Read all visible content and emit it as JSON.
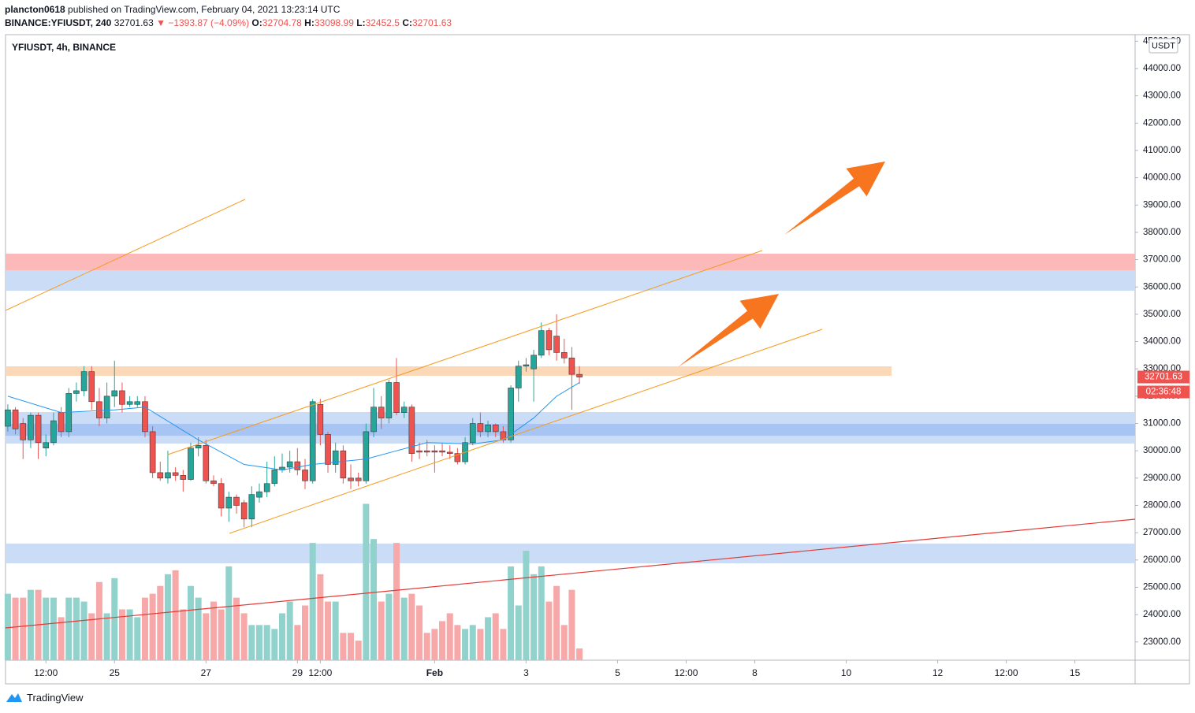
{
  "chart_data": {
    "type": "candlestick",
    "publisher": "plancton0618",
    "published": "published on TradingView.com, February 04, 2021 13:23:14 UTC",
    "symbol": "BINANCE:YFIUSDT, 240",
    "last": 32701.63,
    "change": "▼ −1393.87 (−4.09%)",
    "o_label": "O:",
    "o": 32704.78,
    "h_label": "H:",
    "h": 33098.99,
    "l_label": "L:",
    "l": 32452.5,
    "c_label": "C:",
    "c": 32701.63,
    "legend": "YFIUSDT, 4h, BINANCE",
    "currency": "USDT",
    "price_label": 32701.63,
    "countdown": "02:36:48",
    "brand": "TradingView",
    "up_color": "#26a69a",
    "down_color": "#ef5350",
    "volume_up_color": "#92d2cc",
    "volume_down_color": "#f6a9a8",
    "open": [
      30900,
      31500,
      31000,
      30400,
      31300,
      30100,
      30300,
      31400,
      30700,
      32100,
      32200,
      32900,
      31800,
      31200,
      32000,
      32200,
      31700,
      31700,
      31800,
      30700,
      29200,
      29000,
      29200,
      29100,
      28950,
      30100,
      30200,
      28900,
      28800,
      27900,
      28300,
      28100,
      27500,
      28300,
      28500,
      28800,
      29300,
      29400,
      29600,
      29300,
      28900,
      31700,
      30600,
      29500,
      30000,
      29000,
      29000,
      28900,
      30700,
      31600,
      31200,
      32500,
      31400,
      31600,
      30000,
      30000,
      30000,
      30000,
      29950,
      29900,
      29600,
      30300,
      31000,
      30700,
      30950,
      30700,
      30400,
      32300,
      33100,
      33000,
      33500,
      34400,
      34200,
      33600,
      33400,
      32800
    ],
    "high": [
      31700,
      31600,
      31200,
      31400,
      31400,
      30600,
      31400,
      31600,
      32300,
      32500,
      33100,
      33100,
      32300,
      32500,
      33300,
      32500,
      32000,
      32000,
      32000,
      30900,
      29600,
      30000,
      29400,
      29300,
      30300,
      30500,
      30400,
      29100,
      29000,
      28500,
      28400,
      28200,
      28700,
      28800,
      29600,
      29800,
      29900,
      30000,
      30100,
      29700,
      31900,
      31900,
      30700,
      30300,
      30200,
      29500,
      29200,
      31000,
      32300,
      32000,
      32600,
      33400,
      31800,
      31700,
      30300,
      30400,
      30200,
      30300,
      30200,
      30100,
      30500,
      31200,
      31400,
      31100,
      31000,
      30900,
      32400,
      33300,
      33400,
      33700,
      34700,
      34500,
      35000,
      34100,
      33800,
      33100
    ],
    "low": [
      30700,
      30600,
      29700,
      30100,
      29700,
      29800,
      30200,
      30500,
      30500,
      31800,
      32000,
      31500,
      30900,
      31000,
      31600,
      31400,
      31600,
      31600,
      30500,
      29000,
      28900,
      28800,
      28900,
      28500,
      28900,
      29800,
      28800,
      28700,
      27600,
      27400,
      27700,
      27200,
      27200,
      28100,
      28300,
      28700,
      29200,
      29200,
      29100,
      28600,
      28800,
      30200,
      29200,
      29200,
      28800,
      28600,
      28700,
      28800,
      30500,
      30800,
      31000,
      31300,
      31200,
      29600,
      29700,
      29800,
      29200,
      29800,
      29700,
      29500,
      29500,
      30200,
      30500,
      30500,
      30500,
      30300,
      30300,
      31800,
      32900,
      31800,
      33400,
      33500,
      33300,
      33200,
      31500,
      32450
    ],
    "close": [
      31500,
      30800,
      30400,
      31300,
      30300,
      30300,
      31100,
      30700,
      32100,
      32200,
      32900,
      31800,
      31200,
      32000,
      32200,
      31700,
      31800,
      31800,
      30700,
      29200,
      29000,
      29200,
      29100,
      28950,
      30100,
      30200,
      28900,
      28800,
      27900,
      28300,
      28000,
      27500,
      28400,
      28500,
      28800,
      29300,
      29400,
      29600,
      29300,
      28900,
      31800,
      30600,
      29500,
      30000,
      29000,
      28900,
      28900,
      30700,
      31600,
      31200,
      32500,
      31400,
      31600,
      29900,
      29950,
      29950,
      29950,
      29950,
      29900,
      29600,
      30300,
      31000,
      30700,
      30950,
      30700,
      30400,
      32300,
      33100,
      33150,
      33500,
      34400,
      33700,
      33600,
      33400,
      32800,
      32700
    ],
    "volume": [
      85,
      80,
      80,
      90,
      90,
      80,
      80,
      55,
      80,
      80,
      75,
      60,
      100,
      60,
      105,
      65,
      65,
      55,
      80,
      85,
      95,
      110,
      115,
      65,
      95,
      80,
      60,
      75,
      65,
      120,
      80,
      60,
      45,
      45,
      45,
      40,
      60,
      75,
      45,
      70,
      150,
      110,
      75,
      75,
      35,
      35,
      25,
      200,
      155,
      75,
      85,
      150,
      80,
      85,
      70,
      35,
      40,
      50,
      60,
      45,
      40,
      45,
      40,
      55,
      60,
      40,
      120,
      70,
      140,
      110,
      120,
      75,
      95,
      45,
      90,
      15
    ],
    "volume_lim": [
      0,
      800
    ],
    "ma": {
      "color": "#2196f3",
      "x": [
        0,
        7,
        14,
        18,
        25,
        31,
        36,
        40,
        47,
        51,
        55,
        61,
        65,
        69,
        72,
        75
      ],
      "values": [
        32000,
        31400,
        31500,
        31600,
        30400,
        29500,
        29300,
        29500,
        29700,
        30000,
        30300,
        30250,
        30400,
        31200,
        32000,
        32500
      ]
    },
    "xlim": [
      -0.3,
      147.9
    ],
    "ylim": [
      22330,
      45240
    ],
    "xticks": [
      {
        "value": 5,
        "label": "12:00"
      },
      {
        "value": 14,
        "label": "25"
      },
      {
        "value": 26,
        "label": "27"
      },
      {
        "value": 38,
        "label": "29"
      },
      {
        "value": 41,
        "label": "12:00"
      },
      {
        "value": 56,
        "label": "Feb"
      },
      {
        "value": 68,
        "label": "3"
      },
      {
        "value": 80,
        "label": "5"
      },
      {
        "value": 89,
        "label": "12:00"
      },
      {
        "value": 98,
        "label": "8"
      },
      {
        "value": 110,
        "label": "10"
      },
      {
        "value": 122,
        "label": "12"
      },
      {
        "value": 131,
        "label": "12:00"
      },
      {
        "value": 140,
        "label": "15"
      }
    ],
    "yticks": [
      {
        "value": 23000,
        "label": "23000.00"
      },
      {
        "value": 24000,
        "label": "24000.00"
      },
      {
        "value": 25000,
        "label": "25000.00"
      },
      {
        "value": 26000,
        "label": "26000.00"
      },
      {
        "value": 27000,
        "label": "27000.00"
      },
      {
        "value": 28000,
        "label": "28000.00"
      },
      {
        "value": 29000,
        "label": "29000.00"
      },
      {
        "value": 30000,
        "label": "30000.00"
      },
      {
        "value": 31000,
        "label": "31000.00"
      },
      {
        "value": 32000,
        "label": "32000.00"
      },
      {
        "value": 33000,
        "label": "33000.00"
      },
      {
        "value": 34000,
        "label": "34000.00"
      },
      {
        "value": 35000,
        "label": "35000.00"
      },
      {
        "value": 36000,
        "label": "36000.00"
      },
      {
        "value": 37000,
        "label": "37000.00"
      },
      {
        "value": 38000,
        "label": "38000.00"
      },
      {
        "value": 39000,
        "label": "39000.00"
      },
      {
        "value": 40000,
        "label": "40000.00"
      },
      {
        "value": 41000,
        "label": "41000.00"
      },
      {
        "value": 42000,
        "label": "42000.00"
      },
      {
        "value": 43000,
        "label": "43000.00"
      },
      {
        "value": 44000,
        "label": "44000.00"
      },
      {
        "value": 45000,
        "label": "45000.00"
      }
    ],
    "grid": false
  }
}
